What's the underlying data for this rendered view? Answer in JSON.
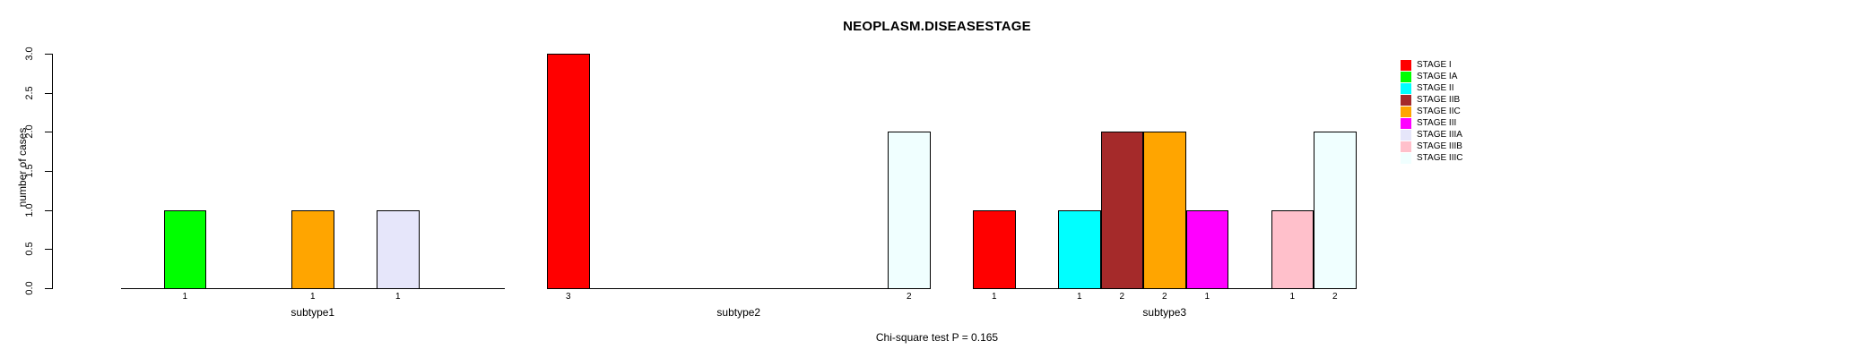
{
  "chart_data": {
    "type": "bar",
    "title": "NEOPLASM.DISEASESTAGE",
    "ylabel": "number of cases",
    "xlabel": "",
    "footer": "Chi-square test P = 0.165",
    "ylim": [
      0,
      3
    ],
    "yticks": [
      "0.0",
      "0.5",
      "1.0",
      "1.5",
      "2.0",
      "2.5",
      "3.0"
    ],
    "grid": false,
    "legend_position": "right",
    "legend": [
      {
        "label": "STAGE I",
        "color": "#FF0000"
      },
      {
        "label": "STAGE IA",
        "color": "#00FF00"
      },
      {
        "label": "STAGE II",
        "color": "#00FFFF"
      },
      {
        "label": "STAGE IIB",
        "color": "#A52A2A"
      },
      {
        "label": "STAGE IIC",
        "color": "#FFA500"
      },
      {
        "label": "STAGE III",
        "color": "#FF00FF"
      },
      {
        "label": "STAGE IIIA",
        "color": "#E6E6FA"
      },
      {
        "label": "STAGE IIIB",
        "color": "#FFC0CB"
      },
      {
        "label": "STAGE IIIC",
        "color": "#F0FFFF"
      }
    ],
    "categories": [
      "subtype1",
      "subtype2",
      "subtype3"
    ],
    "series": [
      {
        "name": "STAGE I",
        "values": [
          0,
          3,
          1
        ]
      },
      {
        "name": "STAGE IA",
        "values": [
          1,
          0,
          0
        ]
      },
      {
        "name": "STAGE II",
        "values": [
          0,
          0,
          1
        ]
      },
      {
        "name": "STAGE IIB",
        "values": [
          0,
          0,
          2
        ]
      },
      {
        "name": "STAGE IIC",
        "values": [
          1,
          0,
          2
        ]
      },
      {
        "name": "STAGE III",
        "values": [
          0,
          0,
          1
        ]
      },
      {
        "name": "STAGE IIIA",
        "values": [
          1,
          0,
          0
        ]
      },
      {
        "name": "STAGE IIIB",
        "values": [
          0,
          0,
          1
        ]
      },
      {
        "name": "STAGE IIIC",
        "values": [
          0,
          2,
          2
        ]
      }
    ],
    "bar_count_labels": {
      "subtype1": [
        "1",
        "1",
        "1"
      ],
      "subtype2": [
        "3",
        "2"
      ],
      "subtype3": [
        "1",
        "1",
        "2",
        "2",
        "1",
        "1",
        "2"
      ]
    },
    "axis_color": "#000000",
    "bar_border_color": "#000000"
  }
}
